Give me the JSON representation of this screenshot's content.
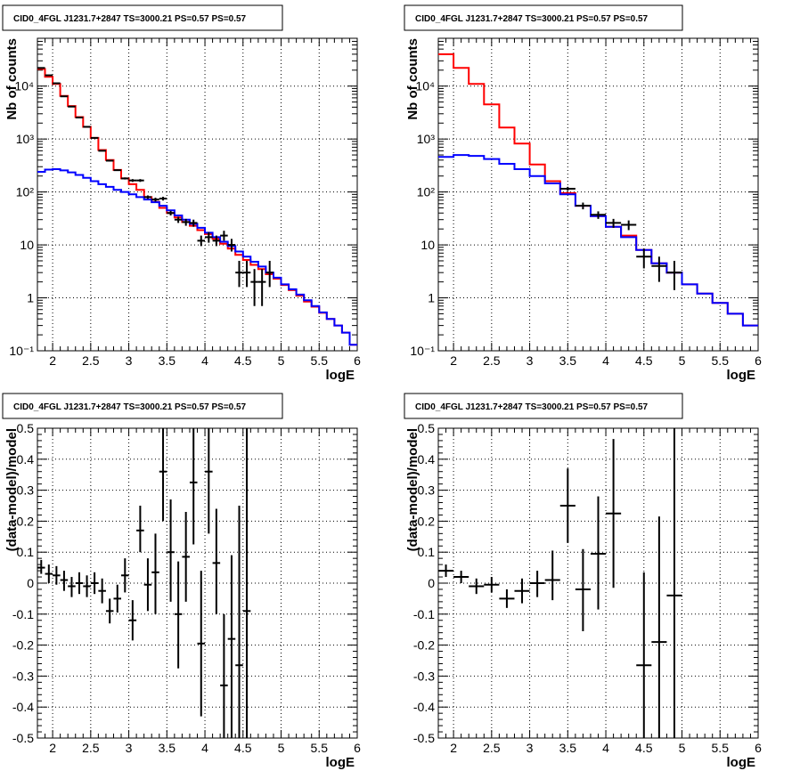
{
  "colors": {
    "data": "#000000",
    "total_model": "#ff0000",
    "source_model": "#0000ff",
    "grid": "#000000"
  },
  "chart_data": [
    {
      "type": "line",
      "title": "CID0_4FGL J1231.7+2847 TS=3000.21 PS=0.57 PS=0.57",
      "xlabel": "logE",
      "ylabel": "Nb of counts",
      "xlim": [
        1.8,
        6
      ],
      "ylim": [
        0.1,
        80000
      ],
      "log_y": true,
      "grid": true,
      "xticks": [
        "2",
        "2.5",
        "3",
        "3.5",
        "4",
        "4.5",
        "5",
        "5.5",
        "6"
      ],
      "yticks": [
        "10⁻¹",
        "1",
        "10",
        "10²",
        "10³",
        "10⁴"
      ],
      "series": [
        {
          "style": "step",
          "color": "#ff0000",
          "edges": [
            1.8,
            1.9,
            2.0,
            2.1,
            2.2,
            2.3,
            2.4,
            2.5,
            2.6,
            2.7,
            2.8,
            2.9,
            3.0,
            3.1,
            3.2,
            3.3,
            3.4,
            3.5,
            3.6,
            3.7,
            3.8,
            3.9,
            4.0,
            4.1,
            4.2,
            4.3,
            4.4,
            4.5,
            4.6,
            4.7,
            4.8,
            4.9,
            5.0,
            5.1,
            5.2,
            5.3,
            5.4,
            5.5,
            5.6,
            5.7,
            5.8,
            5.9,
            6.0
          ],
          "values": [
            21000,
            15000,
            11000,
            6500,
            4200,
            2600,
            1700,
            1050,
            620,
            400,
            260,
            180,
            140,
            110,
            80,
            65,
            50,
            40,
            33,
            27,
            23,
            19,
            16,
            13,
            10.5,
            8.5,
            6.5,
            5.2,
            4.2,
            3.5,
            2.8,
            2.3,
            1.75,
            1.4,
            1.1,
            0.85,
            0.68,
            0.52,
            0.4,
            0.3,
            0.22,
            0.13
          ]
        },
        {
          "style": "step",
          "color": "#0000ff",
          "edges": [
            1.8,
            1.9,
            2.0,
            2.1,
            2.2,
            2.3,
            2.4,
            2.5,
            2.6,
            2.7,
            2.8,
            2.9,
            3.0,
            3.1,
            3.2,
            3.3,
            3.4,
            3.5,
            3.6,
            3.7,
            3.8,
            3.9,
            4.0,
            4.1,
            4.2,
            4.3,
            4.4,
            4.5,
            4.6,
            4.7,
            4.8,
            4.9,
            5.0,
            5.1,
            5.2,
            5.3,
            5.4,
            5.5,
            5.6,
            5.7,
            5.8,
            5.9,
            6.0
          ],
          "values": [
            240,
            265,
            270,
            255,
            235,
            210,
            185,
            160,
            140,
            125,
            110,
            100,
            90,
            80,
            72,
            64,
            55,
            45,
            36,
            30,
            25,
            21,
            17,
            14,
            11.5,
            9.5,
            7.5,
            6.0,
            4.8,
            3.9,
            3.0,
            2.4,
            1.8,
            1.45,
            1.15,
            0.9,
            0.7,
            0.53,
            0.4,
            0.3,
            0.22,
            0.13
          ]
        },
        {
          "style": "errorbars",
          "color": "#000000",
          "x": [
            1.85,
            1.95,
            2.05,
            2.15,
            2.25,
            2.35,
            2.45,
            2.55,
            2.65,
            2.75,
            2.85,
            2.95,
            3.05,
            3.15,
            3.25,
            3.35,
            3.45,
            3.55,
            3.65,
            3.75,
            3.85,
            3.95,
            4.05,
            4.15,
            4.25,
            4.35,
            4.45,
            4.55,
            4.65,
            4.75,
            4.85
          ],
          "y": [
            22000,
            16000,
            11300,
            6400,
            4100,
            2550,
            1700,
            1050,
            600,
            390,
            258,
            180,
            165,
            165,
            80,
            72,
            75,
            40,
            30,
            27,
            26,
            12,
            14,
            12,
            15,
            10,
            3,
            3,
            2,
            2,
            3
          ],
          "xerr": 0.05,
          "ylow": [
            21800,
            15800,
            11100,
            6300,
            4050,
            2500,
            1670,
            1020,
            585,
            375,
            250,
            172,
            155,
            155,
            74,
            66,
            69,
            36,
            26,
            23,
            22,
            9.5,
            11,
            9.5,
            12,
            7.5,
            1.6,
            1.6,
            0.7,
            0.7,
            1.6
          ],
          "yhigh": [
            22200,
            16200,
            11500,
            6500,
            4150,
            2600,
            1730,
            1080,
            615,
            405,
            266,
            188,
            175,
            175,
            86,
            78,
            81,
            44,
            34,
            31,
            30,
            15,
            17.5,
            15,
            18.5,
            13,
            5,
            5,
            3.5,
            3.5,
            5
          ]
        }
      ]
    },
    {
      "type": "line",
      "title": "CID0_4FGL J1231.7+2847 TS=3000.21 PS=0.57 PS=0.57",
      "xlabel": "logE",
      "ylabel": "Nb of counts",
      "xlim": [
        1.8,
        6
      ],
      "ylim": [
        0.1,
        80000
      ],
      "log_y": true,
      "grid": true,
      "xticks": [
        "2",
        "2.5",
        "3",
        "3.5",
        "4",
        "4.5",
        "5",
        "5.5",
        "6"
      ],
      "yticks": [
        "10⁻¹",
        "1",
        "10",
        "10²",
        "10³",
        "10⁴"
      ],
      "series": [
        {
          "style": "step",
          "color": "#ff0000",
          "edges": [
            1.8,
            2.0,
            2.2,
            2.4,
            2.6,
            2.8,
            3.0,
            3.2,
            3.4,
            3.6,
            3.8,
            4.0,
            4.2,
            4.4,
            4.6,
            4.8,
            5.0,
            5.2,
            5.4,
            5.6,
            5.8,
            6.0
          ],
          "values": [
            40000,
            22000,
            11000,
            4500,
            1650,
            820,
            330,
            160,
            95,
            55,
            35,
            22,
            15,
            8,
            4.5,
            3,
            1.8,
            1.2,
            0.8,
            0.5,
            0.3
          ]
        },
        {
          "style": "step",
          "color": "#0000ff",
          "edges": [
            1.8,
            2.0,
            2.2,
            2.4,
            2.6,
            2.8,
            3.0,
            3.2,
            3.4,
            3.6,
            3.8,
            4.0,
            4.2,
            4.4,
            4.6,
            4.8,
            5.0,
            5.2,
            5.4,
            5.6,
            5.8,
            6.0
          ],
          "values": [
            460,
            500,
            480,
            420,
            340,
            270,
            200,
            145,
            90,
            55,
            35,
            22,
            14,
            8,
            4.5,
            3,
            1.8,
            1.2,
            0.8,
            0.5,
            0.3
          ]
        },
        {
          "style": "errorbars",
          "color": "#000000",
          "x": [
            3.5,
            3.7,
            3.9,
            4.1,
            4.3,
            4.5,
            4.7,
            4.9
          ],
          "y": [
            115,
            55,
            37,
            26,
            24,
            6,
            4,
            3
          ],
          "xerr": 0.1,
          "ylow": [
            105,
            47,
            31,
            21,
            19,
            3.6,
            2,
            1.4
          ],
          "yhigh": [
            125,
            63,
            43,
            31,
            29,
            8.5,
            6,
            5
          ]
        }
      ]
    },
    {
      "type": "scatter",
      "title": "CID0_4FGL J1231.7+2847 TS=3000.21 PS=0.57 PS=0.57",
      "xlabel": "logE",
      "ylabel": "(data-model)/model",
      "xlim": [
        1.8,
        6
      ],
      "ylim": [
        -0.5,
        0.5
      ],
      "log_y": false,
      "grid": true,
      "xticks": [
        "2",
        "2.5",
        "3",
        "3.5",
        "4",
        "4.5",
        "5",
        "5.5",
        "6"
      ],
      "yticks": [
        "-0.5",
        "-0.4",
        "-0.3",
        "-0.2",
        "-0.1",
        "0",
        "0.1",
        "0.2",
        "0.3",
        "0.4",
        "0.5"
      ],
      "series": [
        {
          "style": "errorbars",
          "color": "#000000",
          "x": [
            1.85,
            1.95,
            2.05,
            2.15,
            2.25,
            2.35,
            2.45,
            2.55,
            2.65,
            2.75,
            2.85,
            2.95,
            3.05,
            3.15,
            3.25,
            3.35,
            3.45,
            3.55,
            3.65,
            3.75,
            3.85,
            3.95,
            4.05,
            4.15,
            4.25,
            4.35,
            4.45,
            4.55,
            4.65,
            4.75
          ],
          "y": [
            0.05,
            0.03,
            0.025,
            0.01,
            -0.01,
            0.0,
            -0.01,
            0.0,
            -0.025,
            -0.09,
            -0.05,
            0.025,
            -0.12,
            0.17,
            -0.005,
            0.035,
            0.36,
            0.1,
            -0.1,
            0.085,
            0.325,
            -0.195,
            0.36,
            0.065,
            -0.33,
            -0.18,
            -0.265,
            -0.09,
            0.0,
            0.0
          ],
          "xerr": 0.05,
          "ylow": [
            0.03,
            0.0,
            -0.005,
            -0.025,
            -0.045,
            -0.035,
            -0.045,
            -0.035,
            -0.065,
            -0.13,
            -0.095,
            -0.03,
            -0.185,
            0.1,
            -0.09,
            -0.1,
            0.2,
            -0.06,
            -0.275,
            -0.06,
            0.125,
            -0.43,
            0.16,
            -0.1,
            -0.5,
            -0.5,
            -0.5,
            -0.5,
            0.0,
            0.0
          ],
          "yhigh": [
            0.075,
            0.06,
            0.055,
            0.04,
            0.02,
            0.035,
            0.025,
            0.035,
            0.015,
            -0.05,
            -0.005,
            0.08,
            -0.055,
            0.25,
            0.08,
            0.16,
            0.5,
            0.27,
            0.07,
            0.23,
            0.5,
            0.04,
            0.5,
            0.24,
            -0.1,
            0.09,
            0.25,
            0.5,
            0.0,
            0.0
          ]
        }
      ]
    },
    {
      "type": "scatter",
      "title": "CID0_4FGL J1231.7+2847 TS=3000.21 PS=0.57 PS=0.57",
      "xlabel": "logE",
      "ylabel": "(data-model)/model",
      "xlim": [
        1.8,
        6
      ],
      "ylim": [
        -0.5,
        0.5
      ],
      "log_y": false,
      "grid": true,
      "xticks": [
        "2",
        "2.5",
        "3",
        "3.5",
        "4",
        "4.5",
        "5",
        "5.5",
        "6"
      ],
      "yticks": [
        "-0.5",
        "-0.4",
        "-0.3",
        "-0.2",
        "-0.1",
        "0",
        "0.1",
        "0.2",
        "0.3",
        "0.4",
        "0.5"
      ],
      "series": [
        {
          "style": "errorbars",
          "color": "#000000",
          "x": [
            1.9,
            2.1,
            2.3,
            2.5,
            2.7,
            2.9,
            3.1,
            3.3,
            3.5,
            3.7,
            3.9,
            4.1,
            4.3,
            4.5,
            4.7,
            4.9
          ],
          "y": [
            0.04,
            0.02,
            -0.01,
            -0.005,
            -0.05,
            -0.025,
            0.0,
            0.01,
            0.25,
            -0.02,
            0.095,
            0.225,
            0.0,
            -0.265,
            -0.19,
            -0.04
          ],
          "xerr": 0.1,
          "ylow": [
            0.02,
            0.0,
            -0.035,
            -0.03,
            -0.08,
            -0.065,
            -0.045,
            -0.055,
            0.13,
            -0.155,
            -0.085,
            -0.015,
            0.0,
            -0.5,
            -0.5,
            -0.5
          ],
          "yhigh": [
            0.06,
            0.04,
            0.015,
            0.02,
            -0.02,
            0.015,
            0.04,
            0.105,
            0.37,
            0.11,
            0.28,
            0.465,
            0.0,
            0.035,
            0.215,
            0.5
          ]
        }
      ]
    }
  ]
}
